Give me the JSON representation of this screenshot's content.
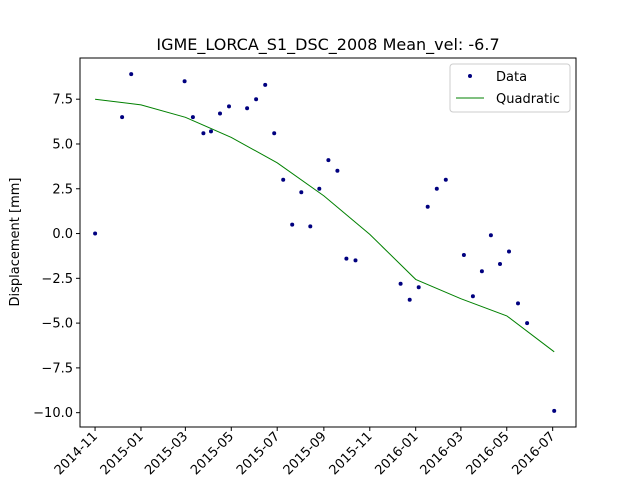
{
  "chart_data": {
    "type": "scatter",
    "title": "IGME_LORCA_S1_DSC_2008    Mean_vel: -6.7",
    "xlabel": "",
    "ylabel": "Displacement [mm]",
    "x_tick_labels": [
      "2014-11",
      "2015-01",
      "2015-03",
      "2015-05",
      "2015-07",
      "2015-09",
      "2015-11",
      "2016-01",
      "2016-03",
      "2016-05",
      "2016-07"
    ],
    "y_ticks": [
      -10.0,
      -7.5,
      -5.0,
      -2.5,
      0.0,
      2.5,
      5.0,
      7.5
    ],
    "y_tick_labels": [
      "−10.0",
      "−7.5",
      "−5.0",
      "−2.5",
      "0.0",
      "2.5",
      "5.0",
      "7.5"
    ],
    "xlim": [
      "2014-10-12",
      "2016-08-01"
    ],
    "ylim": [
      -10.8,
      9.8
    ],
    "grid": false,
    "legend_position": "top-right",
    "colors": {
      "data": "#00007f",
      "fit": "#008000"
    },
    "series": [
      {
        "name": "Data",
        "kind": "points",
        "points": [
          {
            "x": "2014-11-01",
            "y": 0.0
          },
          {
            "x": "2014-12-07",
            "y": 6.5
          },
          {
            "x": "2014-12-19",
            "y": 8.9
          },
          {
            "x": "2015-02-28",
            "y": 8.5
          },
          {
            "x": "2015-03-11",
            "y": 6.5
          },
          {
            "x": "2015-03-25",
            "y": 5.6
          },
          {
            "x": "2015-04-04",
            "y": 5.7
          },
          {
            "x": "2015-04-16",
            "y": 6.7
          },
          {
            "x": "2015-04-28",
            "y": 7.1
          },
          {
            "x": "2015-05-22",
            "y": 7.0
          },
          {
            "x": "2015-06-03",
            "y": 7.5
          },
          {
            "x": "2015-06-15",
            "y": 8.3
          },
          {
            "x": "2015-06-27",
            "y": 5.6
          },
          {
            "x": "2015-07-09",
            "y": 3.0
          },
          {
            "x": "2015-07-21",
            "y": 0.5
          },
          {
            "x": "2015-08-02",
            "y": 2.3
          },
          {
            "x": "2015-08-14",
            "y": 0.4
          },
          {
            "x": "2015-08-26",
            "y": 2.5
          },
          {
            "x": "2015-09-07",
            "y": 4.1
          },
          {
            "x": "2015-09-19",
            "y": 3.5
          },
          {
            "x": "2015-10-01",
            "y": -1.4
          },
          {
            "x": "2015-10-13",
            "y": -1.5
          },
          {
            "x": "2015-12-12",
            "y": -2.8
          },
          {
            "x": "2015-12-24",
            "y": -3.7
          },
          {
            "x": "2016-01-05",
            "y": -3.0
          },
          {
            "x": "2016-01-17",
            "y": 1.5
          },
          {
            "x": "2016-01-29",
            "y": 2.5
          },
          {
            "x": "2016-02-10",
            "y": 3.0
          },
          {
            "x": "2016-03-05",
            "y": -1.2
          },
          {
            "x": "2016-03-17",
            "y": -3.5
          },
          {
            "x": "2016-03-29",
            "y": -2.1
          },
          {
            "x": "2016-04-10",
            "y": -0.1
          },
          {
            "x": "2016-04-22",
            "y": -1.7
          },
          {
            "x": "2016-05-04",
            "y": -1.0
          },
          {
            "x": "2016-05-16",
            "y": -3.9
          },
          {
            "x": "2016-05-28",
            "y": -5.0
          },
          {
            "x": "2016-07-03",
            "y": -9.9
          }
        ]
      },
      {
        "name": "Quadratic",
        "kind": "line",
        "points": [
          {
            "x": "2014-11-01",
            "y": 7.5
          },
          {
            "x": "2015-01-01",
            "y": 7.18
          },
          {
            "x": "2015-03-01",
            "y": 6.49
          },
          {
            "x": "2015-05-01",
            "y": 5.37
          },
          {
            "x": "2015-07-01",
            "y": 3.95
          },
          {
            "x": "2015-09-01",
            "y": 2.1
          },
          {
            "x": "2015-11-01",
            "y": -0.05
          },
          {
            "x": "2016-01-01",
            "y": -2.56
          },
          {
            "x": "2016-03-01",
            "y": -3.64
          },
          {
            "x": "2016-05-01",
            "y": -4.6
          },
          {
            "x": "2016-07-03",
            "y": -6.6
          }
        ]
      }
    ]
  }
}
